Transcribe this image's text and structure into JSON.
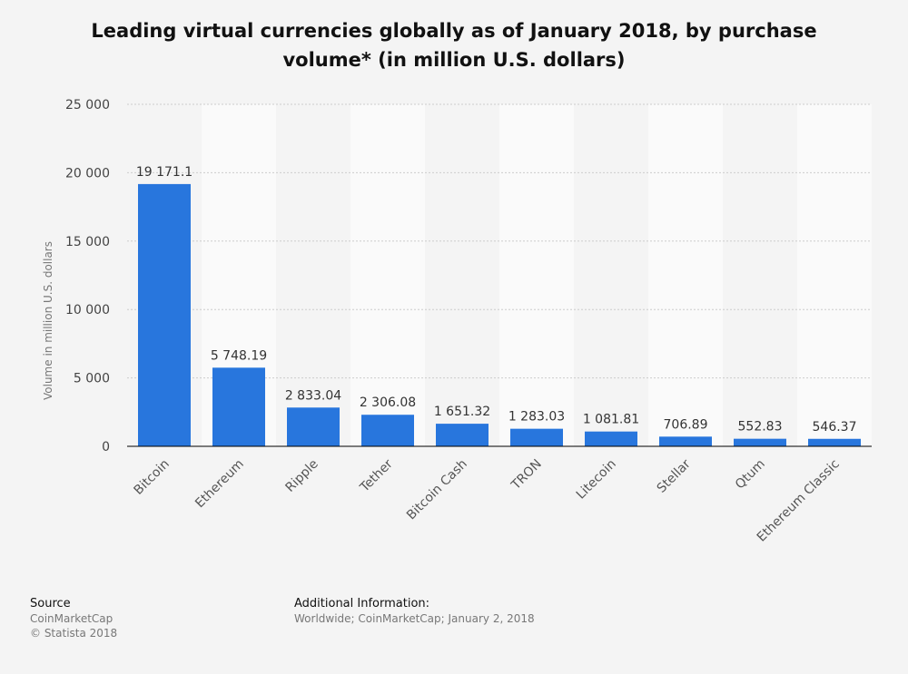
{
  "chart_data": {
    "type": "bar",
    "title": "Leading virtual currencies globally as of January 2018, by purchase volume* (in million U.S. dollars)",
    "xlabel": "",
    "ylabel": "Volume in million U.S. dollars",
    "categories": [
      "Bitcoin",
      "Ethereum",
      "Ripple",
      "Tether",
      "Bitcoin Cash",
      "TRON",
      "Litecoin",
      "Stellar",
      "Qtum",
      "Ethereum Classic"
    ],
    "values": [
      19171.1,
      5748.19,
      2833.04,
      2306.08,
      1651.32,
      1283.03,
      1081.81,
      706.89,
      552.83,
      546.37
    ],
    "value_labels": [
      "19 171.1",
      "5 748.19",
      "2 833.04",
      "2 306.08",
      "1 651.32",
      "1 283.03",
      "1 081.81",
      "706.89",
      "552.83",
      "546.37"
    ],
    "ylim": [
      0,
      25000
    ],
    "yticks": [
      0,
      5000,
      10000,
      15000,
      20000,
      25000
    ],
    "ytick_labels": [
      "0",
      "5 000",
      "10 000",
      "15 000",
      "20 000",
      "25 000"
    ],
    "grid": true,
    "colors": {
      "bar": "#2876dd",
      "band": "#fafafa",
      "grid": "#cccccc",
      "axis": "#000000"
    }
  },
  "footer": {
    "source_heading": "Source",
    "source_name": "CoinMarketCap",
    "copyright": "© Statista 2018",
    "info_heading": "Additional Information:",
    "info_text": "Worldwide; CoinMarketCap; January 2, 2018"
  }
}
